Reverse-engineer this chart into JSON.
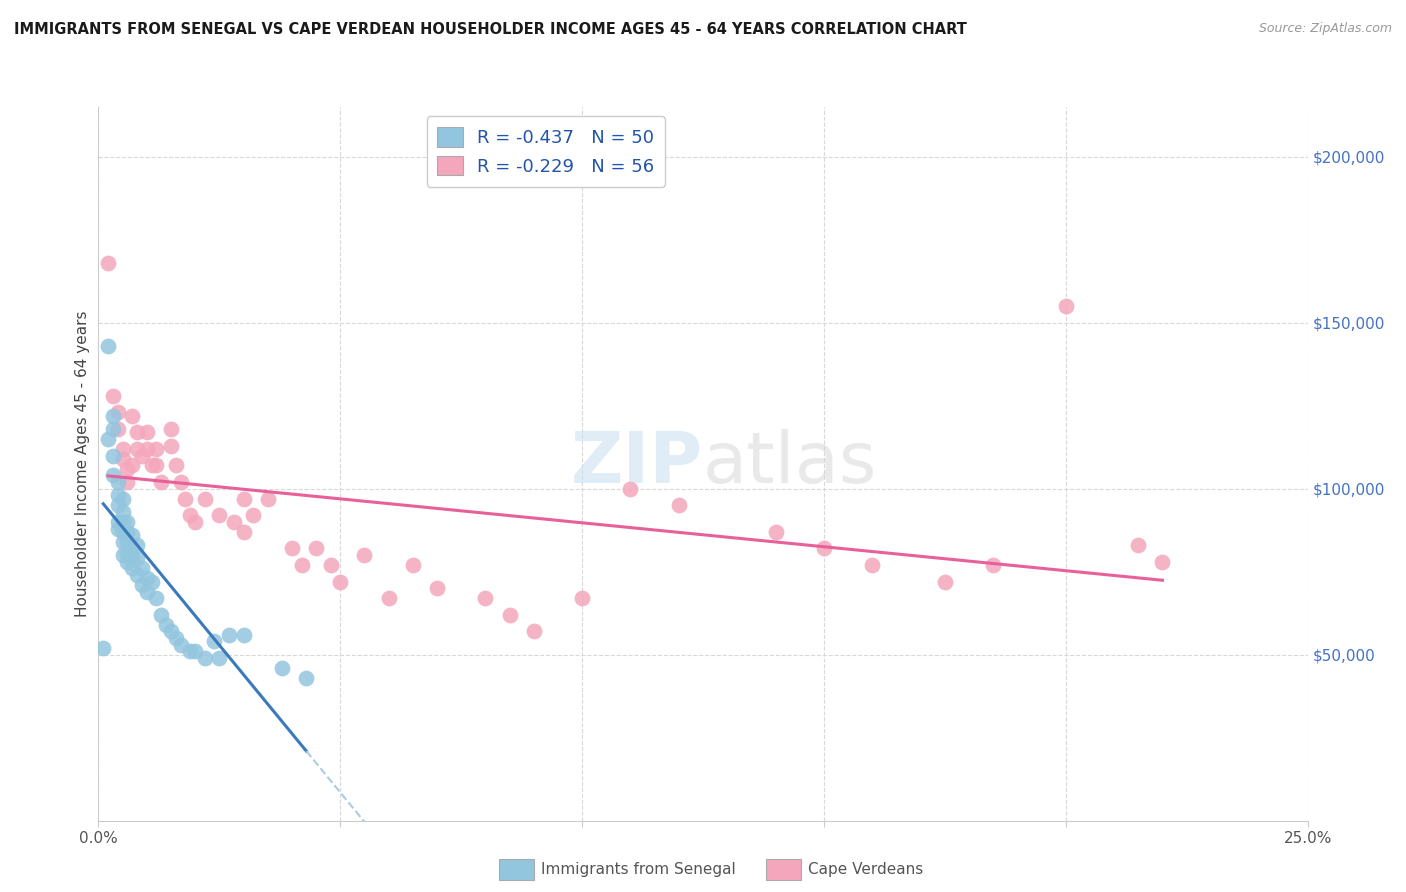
{
  "title": "IMMIGRANTS FROM SENEGAL VS CAPE VERDEAN HOUSEHOLDER INCOME AGES 45 - 64 YEARS CORRELATION CHART",
  "source": "Source: ZipAtlas.com",
  "ylabel": "Householder Income Ages 45 - 64 years",
  "xlim": [
    0.0,
    0.25
  ],
  "ylim": [
    0,
    215000
  ],
  "senegal_R": -0.437,
  "senegal_N": 50,
  "capeverdean_R": -0.229,
  "capeverdean_N": 56,
  "senegal_color": "#92c5de",
  "capeverdean_color": "#f4a6bc",
  "senegal_line_color": "#3a7aba",
  "capeverdean_line_color": "#e8609a",
  "senegal_line_dashed_color": "#aacce8",
  "background_color": "#ffffff",
  "grid_color": "#d8d8d8",
  "watermark_zip": "ZIP",
  "watermark_atlas": "atlas",
  "legend_label_1": "Immigrants from Senegal",
  "legend_label_2": "Cape Verdeans",
  "senegal_x": [
    0.001,
    0.002,
    0.002,
    0.003,
    0.003,
    0.003,
    0.003,
    0.004,
    0.004,
    0.004,
    0.004,
    0.004,
    0.005,
    0.005,
    0.005,
    0.005,
    0.005,
    0.005,
    0.006,
    0.006,
    0.006,
    0.006,
    0.006,
    0.007,
    0.007,
    0.007,
    0.007,
    0.008,
    0.008,
    0.008,
    0.009,
    0.009,
    0.01,
    0.01,
    0.011,
    0.012,
    0.013,
    0.014,
    0.015,
    0.016,
    0.017,
    0.019,
    0.02,
    0.022,
    0.024,
    0.025,
    0.027,
    0.03,
    0.038,
    0.043
  ],
  "senegal_y": [
    52000,
    143000,
    115000,
    122000,
    118000,
    110000,
    104000,
    102000,
    98000,
    95000,
    90000,
    88000,
    97000,
    93000,
    90000,
    87000,
    84000,
    80000,
    90000,
    87000,
    84000,
    81000,
    78000,
    86000,
    82000,
    79000,
    76000,
    83000,
    79000,
    74000,
    76000,
    71000,
    73000,
    69000,
    72000,
    67000,
    62000,
    59000,
    57000,
    55000,
    53000,
    51000,
    51000,
    49000,
    54000,
    49000,
    56000,
    56000,
    46000,
    43000
  ],
  "capeverdean_x": [
    0.002,
    0.003,
    0.004,
    0.004,
    0.005,
    0.005,
    0.006,
    0.006,
    0.007,
    0.007,
    0.008,
    0.008,
    0.009,
    0.01,
    0.01,
    0.011,
    0.012,
    0.012,
    0.013,
    0.015,
    0.015,
    0.016,
    0.017,
    0.018,
    0.019,
    0.02,
    0.022,
    0.025,
    0.028,
    0.03,
    0.03,
    0.032,
    0.035,
    0.04,
    0.042,
    0.045,
    0.048,
    0.05,
    0.055,
    0.06,
    0.065,
    0.07,
    0.08,
    0.085,
    0.09,
    0.1,
    0.11,
    0.12,
    0.14,
    0.15,
    0.16,
    0.175,
    0.185,
    0.2,
    0.215,
    0.22
  ],
  "capeverdean_y": [
    168000,
    128000,
    123000,
    118000,
    112000,
    109000,
    106000,
    102000,
    107000,
    122000,
    117000,
    112000,
    110000,
    117000,
    112000,
    107000,
    112000,
    107000,
    102000,
    118000,
    113000,
    107000,
    102000,
    97000,
    92000,
    90000,
    97000,
    92000,
    90000,
    97000,
    87000,
    92000,
    97000,
    82000,
    77000,
    82000,
    77000,
    72000,
    80000,
    67000,
    77000,
    70000,
    67000,
    62000,
    57000,
    67000,
    100000,
    95000,
    87000,
    82000,
    77000,
    72000,
    77000,
    155000,
    83000,
    78000
  ]
}
